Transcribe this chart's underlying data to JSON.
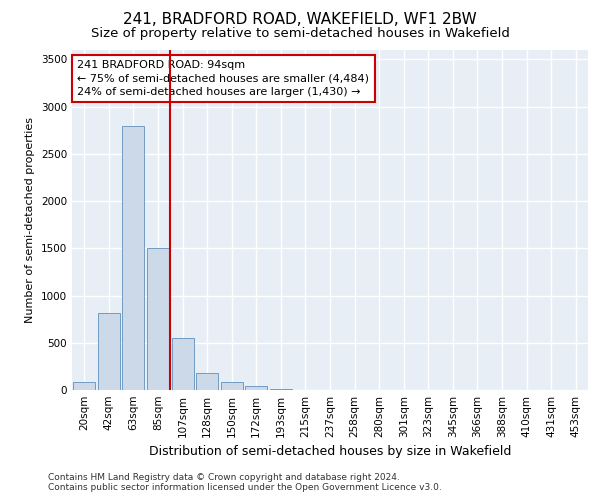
{
  "title": "241, BRADFORD ROAD, WAKEFIELD, WF1 2BW",
  "subtitle": "Size of property relative to semi-detached houses in Wakefield",
  "xlabel": "Distribution of semi-detached houses by size in Wakefield",
  "ylabel": "Number of semi-detached properties",
  "categories": [
    "20sqm",
    "42sqm",
    "63sqm",
    "85sqm",
    "107sqm",
    "128sqm",
    "150sqm",
    "172sqm",
    "193sqm",
    "215sqm",
    "237sqm",
    "258sqm",
    "280sqm",
    "301sqm",
    "323sqm",
    "345sqm",
    "366sqm",
    "388sqm",
    "410sqm",
    "431sqm",
    "453sqm"
  ],
  "values": [
    80,
    820,
    2800,
    1500,
    550,
    175,
    85,
    40,
    10,
    3,
    1,
    0,
    0,
    0,
    0,
    0,
    0,
    0,
    0,
    0,
    0
  ],
  "bar_color": "#ccd9e8",
  "bar_edge_color": "#6090bb",
  "background_color": "#e8eef6",
  "grid_color": "#ffffff",
  "vline_color": "#cc0000",
  "annotation_text": "241 BRADFORD ROAD: 94sqm\n← 75% of semi-detached houses are smaller (4,484)\n24% of semi-detached houses are larger (1,430) →",
  "annotation_box_color": "#cc0000",
  "footer": "Contains HM Land Registry data © Crown copyright and database right 2024.\nContains public sector information licensed under the Open Government Licence v3.0.",
  "ylim": [
    0,
    3600
  ],
  "yticks": [
    0,
    500,
    1000,
    1500,
    2000,
    2500,
    3000,
    3500
  ],
  "title_fontsize": 11,
  "subtitle_fontsize": 9.5,
  "xlabel_fontsize": 9,
  "ylabel_fontsize": 8,
  "tick_fontsize": 7.5,
  "footer_fontsize": 6.5,
  "ann_fontsize": 8
}
